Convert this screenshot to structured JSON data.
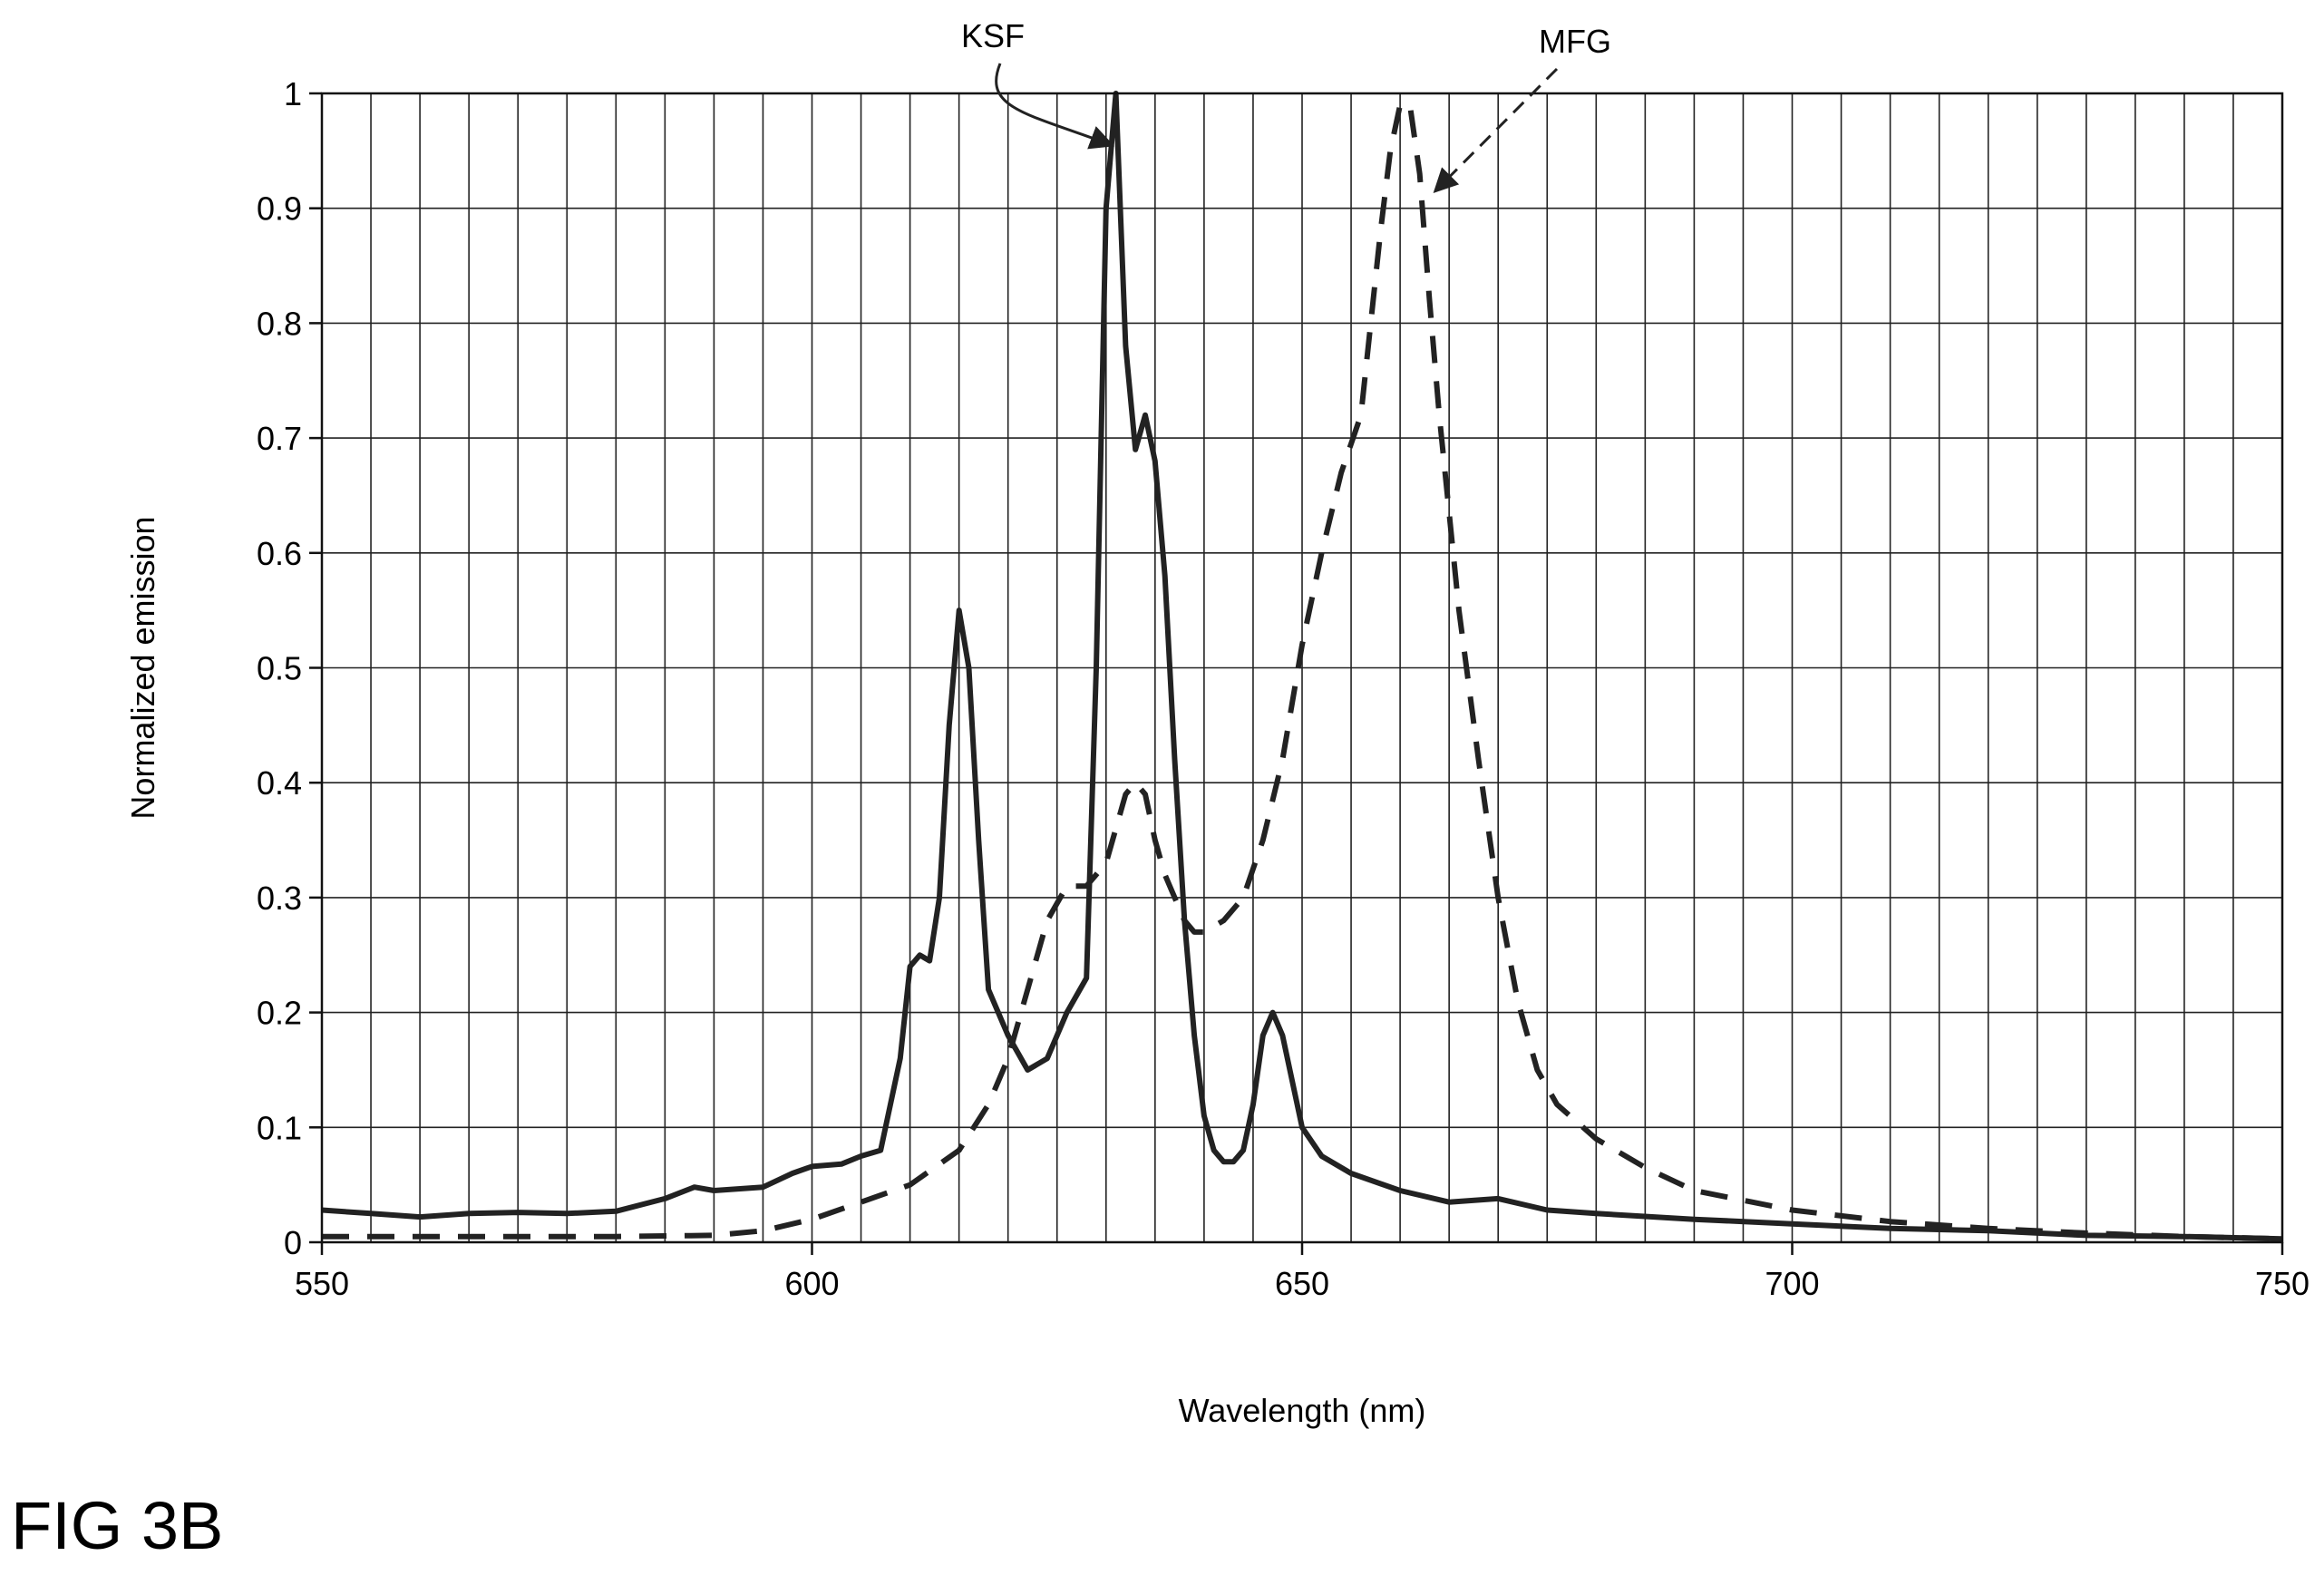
{
  "chart_data": {
    "type": "line",
    "title": "",
    "xlabel": "Wavelength (nm)",
    "ylabel": "Normalized emission",
    "xlim": [
      550,
      750
    ],
    "ylim": [
      0,
      1
    ],
    "x_ticks": [
      550,
      600,
      650,
      700,
      750
    ],
    "x_tick_labels": [
      "550",
      "600",
      "650",
      "700",
      "750"
    ],
    "y_ticks": [
      0,
      0.1,
      0.2,
      0.3,
      0.4,
      0.5,
      0.6,
      0.7,
      0.8,
      0.9,
      1
    ],
    "y_tick_labels": [
      "0",
      "0.1",
      "0.2",
      "0.3",
      "0.4",
      "0.5",
      "0.6",
      "0.7",
      "0.8",
      "0.9",
      "1"
    ],
    "grid": true,
    "grid_x_step": 5,
    "legend": "none",
    "series": [
      {
        "name": "KSF",
        "style": "solid",
        "color": "#222222",
        "x": [
          550,
          555,
          560,
          565,
          570,
          575,
          580,
          585,
          588,
          590,
          595,
          598,
          600,
          603,
          605,
          607,
          609,
          610,
          611,
          612,
          613,
          614,
          615,
          616,
          617,
          618,
          620,
          622,
          624,
          626,
          628,
          629,
          630,
          631,
          632,
          633,
          634,
          635,
          636,
          637,
          638,
          639,
          640,
          641,
          642,
          643,
          644,
          645,
          646,
          647,
          648,
          649,
          650,
          652,
          655,
          660,
          665,
          670,
          675,
          680,
          690,
          700,
          710,
          720,
          730,
          740,
          750
        ],
        "y": [
          0.028,
          0.025,
          0.022,
          0.025,
          0.026,
          0.025,
          0.027,
          0.038,
          0.048,
          0.045,
          0.048,
          0.06,
          0.066,
          0.068,
          0.075,
          0.08,
          0.16,
          0.24,
          0.25,
          0.245,
          0.3,
          0.45,
          0.55,
          0.5,
          0.35,
          0.22,
          0.18,
          0.15,
          0.16,
          0.2,
          0.23,
          0.5,
          0.9,
          1.0,
          0.78,
          0.69,
          0.72,
          0.68,
          0.58,
          0.42,
          0.28,
          0.18,
          0.11,
          0.08,
          0.07,
          0.07,
          0.08,
          0.12,
          0.18,
          0.2,
          0.18,
          0.14,
          0.1,
          0.075,
          0.06,
          0.045,
          0.035,
          0.038,
          0.028,
          0.025,
          0.02,
          0.016,
          0.012,
          0.01,
          0.006,
          0.005,
          0.003
        ]
      },
      {
        "name": "MFG",
        "style": "dashed",
        "color": "#222222",
        "x": [
          550,
          560,
          570,
          580,
          590,
          595,
          600,
          605,
          610,
          615,
          618,
          620,
          622,
          624,
          626,
          628,
          630,
          631,
          632,
          633,
          634,
          635,
          636,
          637,
          638,
          639,
          640,
          642,
          644,
          646,
          648,
          650,
          652,
          654,
          656,
          657,
          658,
          659,
          660,
          661,
          662,
          663,
          664,
          666,
          668,
          670,
          672,
          674,
          676,
          680,
          685,
          690,
          700,
          710,
          720,
          730,
          740,
          750
        ],
        "y": [
          0.005,
          0.005,
          0.005,
          0.005,
          0.006,
          0.01,
          0.02,
          0.035,
          0.05,
          0.08,
          0.12,
          0.16,
          0.22,
          0.28,
          0.31,
          0.31,
          0.33,
          0.36,
          0.39,
          0.4,
          0.39,
          0.35,
          0.32,
          0.3,
          0.28,
          0.27,
          0.27,
          0.28,
          0.3,
          0.35,
          0.42,
          0.52,
          0.6,
          0.67,
          0.72,
          0.8,
          0.88,
          0.95,
          0.99,
          0.99,
          0.93,
          0.82,
          0.72,
          0.55,
          0.42,
          0.3,
          0.21,
          0.15,
          0.12,
          0.09,
          0.065,
          0.045,
          0.028,
          0.018,
          0.012,
          0.008,
          0.005,
          0.003
        ]
      }
    ],
    "annotations": [
      {
        "text": "KSF",
        "points_to_x": 631,
        "points_to_y": 0.95
      },
      {
        "text": "MFG",
        "points_to_x": 663,
        "points_to_y": 0.91
      }
    ]
  },
  "caption": "FIG 3B"
}
